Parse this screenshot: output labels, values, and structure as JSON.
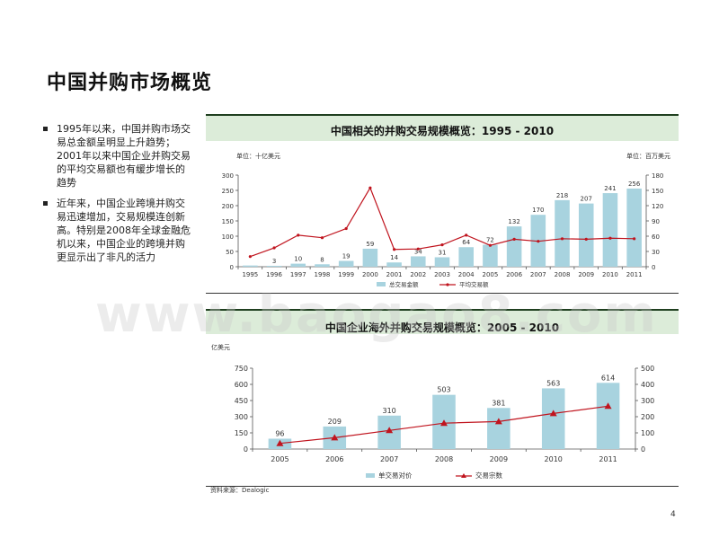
{
  "page": {
    "title": "中国并购市场概览",
    "page_number": "4",
    "source": "资料来源：Dealogic",
    "watermark": "www.baogao8.com"
  },
  "bullets": [
    "1995年以来，中国并购市场交易总金额呈明显上升趋势；2001年以来中国企业并购交易的平均交易额也有缓步增长的趋势",
    "近年来，中国企业跨境并购交易迅速增加，交易规模连创新高。特别是2008年全球金融危机以来，中国企业的跨境并购更显示出了非凡的活力"
  ],
  "colors": {
    "bar": "#a8d3df",
    "line": "#c0141e",
    "band": "#dcecd9"
  },
  "chart_data": [
    {
      "type": "bar+line",
      "title": "中国相关的并购交易规模概览：1995 - 2010",
      "left_unit": "单位：十亿美元",
      "right_unit": "单位：百万美元",
      "categories": [
        "1995",
        "1996",
        "1997",
        "1998",
        "1999",
        "2000",
        "2001",
        "2002",
        "2003",
        "2004",
        "2005",
        "2006",
        "2007",
        "2008",
        "2009",
        "2010",
        "2011"
      ],
      "series": [
        {
          "name": "总交易金额",
          "type": "bar",
          "axis": "left",
          "values": [
            4,
            3,
            10,
            8,
            19,
            59,
            14,
            34,
            31,
            64,
            72,
            132,
            170,
            218,
            207,
            241,
            256
          ]
        },
        {
          "name": "平均交易额",
          "type": "line",
          "axis": "right",
          "values": [
            20,
            37,
            62,
            57,
            75,
            155,
            34,
            35,
            43,
            62,
            42,
            54,
            50,
            55,
            54,
            56,
            55
          ]
        }
      ],
      "bar_labels": [
        "",
        "3",
        "10",
        "8",
        "19",
        "59",
        "14",
        "34",
        "31",
        "64",
        "72",
        "132",
        "170",
        "218",
        "207",
        "241",
        "256"
      ],
      "left_ticks": [
        "0",
        "50",
        "100",
        "150",
        "200",
        "250",
        "300"
      ],
      "right_ticks": [
        "0",
        "30",
        "60",
        "90",
        "120",
        "150",
        "180"
      ],
      "ylim_left": [
        0,
        300
      ],
      "ylim_right": [
        0,
        180
      ],
      "legend_position": "bottom"
    },
    {
      "type": "bar+line",
      "title": "中国企业海外并购交易规模概览：2005 - 2010",
      "left_unit": "亿美元",
      "categories": [
        "2005",
        "2006",
        "2007",
        "2008",
        "2009",
        "2010",
        "2011"
      ],
      "series": [
        {
          "name": "单交易对价",
          "type": "bar",
          "axis": "left",
          "values": [
            96,
            209,
            310,
            503,
            381,
            563,
            614
          ]
        },
        {
          "name": "交易宗数",
          "type": "line",
          "axis": "right",
          "values": [
            35,
            70,
            115,
            160,
            170,
            220,
            265
          ]
        }
      ],
      "bar_labels": [
        "96",
        "209",
        "310",
        "503",
        "381",
        "563",
        "614"
      ],
      "left_ticks": [
        "0",
        "150",
        "300",
        "450",
        "600",
        "750"
      ],
      "right_ticks": [
        "0",
        "100",
        "200",
        "300",
        "400",
        "500"
      ],
      "ylim_left": [
        0,
        750
      ],
      "ylim_right": [
        0,
        500
      ],
      "legend_position": "bottom"
    }
  ]
}
